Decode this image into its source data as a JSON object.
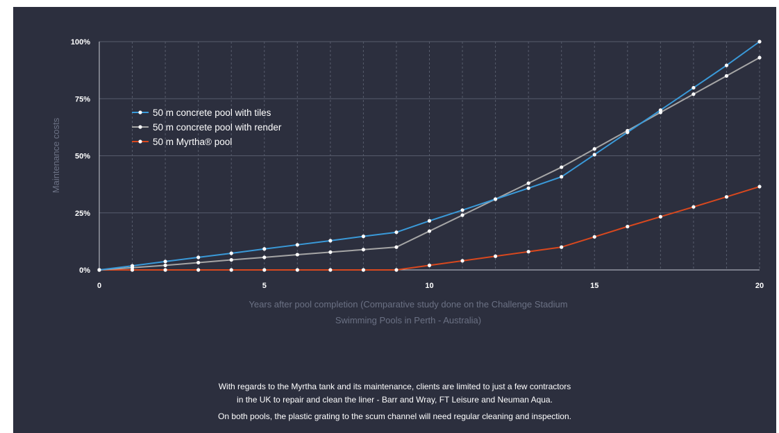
{
  "chart_data": {
    "type": "line",
    "ylabel": "Maintenance costs",
    "xlabel_lines": [
      "Years after pool completion (Comparative study done on the Challenge Stadium",
      "Swimming Pools in Perth - Australia)"
    ],
    "x": [
      0,
      1,
      2,
      3,
      4,
      5,
      6,
      7,
      8,
      9,
      10,
      11,
      12,
      13,
      14,
      15,
      16,
      17,
      18,
      19,
      20
    ],
    "xticks": [
      0,
      5,
      10,
      15,
      20
    ],
    "xlim": [
      0,
      20
    ],
    "yticks": [
      0,
      25,
      50,
      75,
      100
    ],
    "ytick_labels": [
      "0%",
      "25%",
      "50%",
      "75%",
      "100%"
    ],
    "ylim": [
      0,
      100
    ],
    "grid": true,
    "legend_position": "upper-left",
    "series": [
      {
        "name": "50 m concrete pool with tiles",
        "color": "#3a9ad9",
        "values": [
          0,
          1.8,
          3.7,
          5.5,
          7.3,
          9.2,
          11,
          12.8,
          14.7,
          16.5,
          21.5,
          26.2,
          31,
          35.8,
          40.8,
          50.5,
          60.3,
          70,
          79.8,
          89.6,
          100
        ]
      },
      {
        "name": "50 m concrete pool with render",
        "color": "#a6a6a6",
        "values": [
          0,
          1,
          2,
          3.2,
          4.4,
          5.5,
          6.7,
          7.8,
          8.9,
          10,
          17,
          24,
          31,
          38,
          45,
          53,
          61,
          69,
          77,
          85,
          93
        ]
      },
      {
        "name": "50 m Myrtha® pool",
        "color": "#d9481e",
        "values": [
          0,
          0,
          0,
          0,
          0,
          0,
          0,
          0,
          0,
          0,
          2,
          4,
          6,
          8,
          10,
          14.5,
          19,
          23.3,
          27.6,
          32,
          36.5
        ]
      }
    ]
  },
  "notes": {
    "paragraph1_line1": "With regards to the Myrtha tank and its maintenance, clients are limited to just a few contractors",
    "paragraph1_line2": "in the UK to repair and clean the liner - Barr and Wray, FT Leisure and Neuman Aqua.",
    "paragraph2": "On both pools, the plastic grating to the scum channel will need regular cleaning and inspection."
  },
  "colors": {
    "background": "#2c2f3e",
    "grid": "#575c6c",
    "axis_title": "#6b7184"
  }
}
